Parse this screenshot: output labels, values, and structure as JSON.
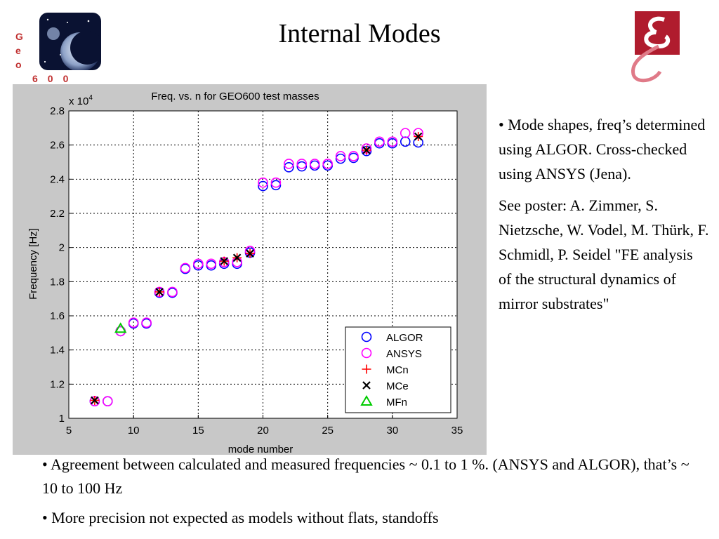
{
  "slide": {
    "title": "Internal Modes",
    "geo_logo": {
      "letters": [
        "G",
        "e",
        "o"
      ],
      "digits": "600"
    },
    "bullets_right": [
      "• Mode shapes, freq’s determined using ALGOR. Cross-checked using ANSYS (Jena).",
      "See poster: A. Zimmer, S. Nietzsche, W. Vodel, M. Thürk, F. Schmidl, P. Seidel \"FE analysis of the structural dynamics of mirror substrates\""
    ],
    "bullets_bottom": [
      "• Agreement between calculated and measured frequencies ~ 0.1 to 1 %. (ANSYS and ALGOR), that’s ~ 10 to 100 Hz",
      "• More precision not expected as models without flats, standoffs"
    ]
  },
  "chart_data": {
    "type": "scatter",
    "title": "Freq. vs. n for GEO600 test masses",
    "xlabel": "mode number",
    "ylabel": "Frequency [Hz]",
    "y_multiplier": "x 10",
    "y_multiplier_exp": "4",
    "xlim": [
      5,
      35
    ],
    "ylim": [
      1,
      2.8
    ],
    "xticks": [
      5,
      10,
      15,
      20,
      25,
      30,
      35
    ],
    "yticks": [
      1,
      1.2,
      1.4,
      1.6,
      1.8,
      2,
      2.2,
      2.4,
      2.6,
      2.8
    ],
    "grid": true,
    "legend_position": "bottom-right",
    "series": [
      {
        "name": "ALGOR",
        "marker": "circle",
        "color": "#0000ff",
        "x": [
          7,
          8,
          9,
          10,
          11,
          12,
          13,
          14,
          15,
          16,
          17,
          18,
          19,
          20,
          21,
          22,
          23,
          24,
          25,
          26,
          27,
          28,
          29,
          30,
          31,
          32
        ],
        "y": [
          1.1,
          1.1,
          1.51,
          1.555,
          1.555,
          1.735,
          1.735,
          1.875,
          1.895,
          1.895,
          1.905,
          1.905,
          1.97,
          2.36,
          2.365,
          2.47,
          2.475,
          2.48,
          2.48,
          2.52,
          2.525,
          2.565,
          2.61,
          2.61,
          2.62,
          2.615
        ]
      },
      {
        "name": "ANSYS",
        "marker": "circle",
        "color": "#ff00ff",
        "x": [
          7,
          8,
          9,
          10,
          11,
          12,
          13,
          14,
          15,
          16,
          17,
          18,
          19,
          20,
          21,
          22,
          23,
          24,
          25,
          26,
          27,
          28,
          29,
          30,
          31,
          32
        ],
        "y": [
          1.1,
          1.1,
          1.51,
          1.56,
          1.56,
          1.74,
          1.74,
          1.88,
          1.905,
          1.905,
          1.915,
          1.915,
          1.98,
          2.38,
          2.38,
          2.49,
          2.49,
          2.49,
          2.49,
          2.535,
          2.535,
          2.58,
          2.62,
          2.62,
          2.67,
          2.67
        ]
      },
      {
        "name": "MCn",
        "marker": "plus",
        "color": "#ff0000",
        "x": [
          7,
          12,
          17,
          18,
          19,
          28,
          32
        ],
        "y": [
          1.105,
          1.74,
          1.92,
          1.94,
          1.965,
          2.57,
          2.65
        ]
      },
      {
        "name": "MCe",
        "marker": "x",
        "color": "#000000",
        "x": [
          7,
          12,
          17,
          18,
          19,
          28,
          32
        ],
        "y": [
          1.105,
          1.74,
          1.92,
          1.94,
          1.965,
          2.57,
          2.65
        ]
      },
      {
        "name": "MFn",
        "marker": "triangle",
        "color": "#00cc00",
        "x": [
          9
        ],
        "y": [
          1.525
        ]
      }
    ]
  }
}
